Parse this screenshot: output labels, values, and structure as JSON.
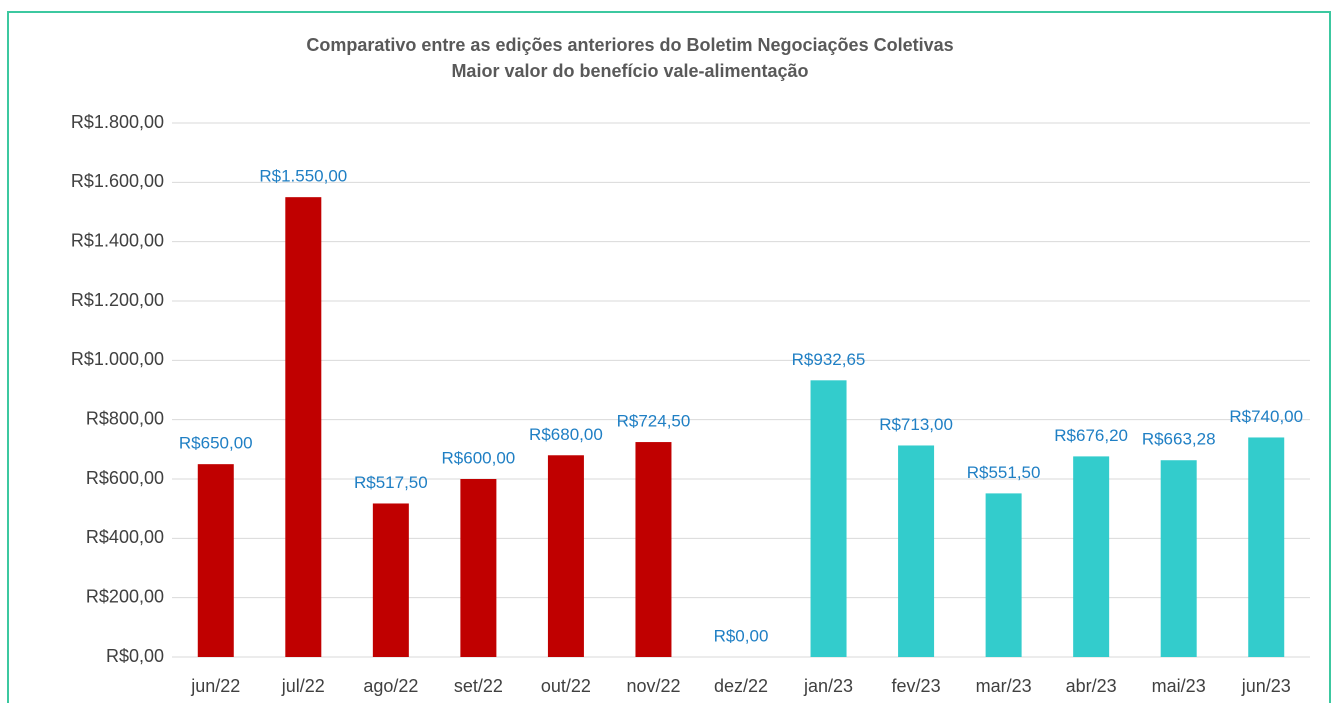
{
  "chart_data": {
    "type": "bar",
    "title": "Comparativo entre as edições anteriores do Boletim Negociações Coletivas",
    "subtitle": "Maior valor do benefício vale-alimentação",
    "categories": [
      "jun/22",
      "jul/22",
      "ago/22",
      "set/22",
      "out/22",
      "nov/22",
      "dez/22",
      "jan/23",
      "fev/23",
      "mar/23",
      "abr/23",
      "mai/23",
      "jun/23"
    ],
    "values": [
      650,
      1550,
      517.5,
      600,
      680,
      724.5,
      0,
      932.65,
      713,
      551.5,
      676.2,
      663.28,
      740
    ],
    "value_labels": [
      "R$650,00",
      "R$1.550,00",
      "R$517,50",
      "R$600,00",
      "R$680,00",
      "R$724,50",
      "R$0,00",
      "R$932,65",
      "R$713,00",
      "R$551,50",
      "R$676,20",
      "R$663,28",
      "R$740,00"
    ],
    "colors": [
      "#c00000",
      "#c00000",
      "#c00000",
      "#c00000",
      "#c00000",
      "#c00000",
      "#c00000",
      "#33cccc",
      "#33cccc",
      "#33cccc",
      "#33cccc",
      "#33cccc",
      "#33cccc"
    ],
    "ylim": [
      0,
      1800
    ],
    "yticks": [
      {
        "value": 0,
        "label": "R$0,00"
      },
      {
        "value": 200,
        "label": "R$200,00"
      },
      {
        "value": 400,
        "label": "R$400,00"
      },
      {
        "value": 600,
        "label": "R$600,00"
      },
      {
        "value": 800,
        "label": "R$800,00"
      },
      {
        "value": 1000,
        "label": "R$1.000,00"
      },
      {
        "value": 1200,
        "label": "R$1.200,00"
      },
      {
        "value": 1400,
        "label": "R$1.400,00"
      },
      {
        "value": 1600,
        "label": "R$1.600,00"
      },
      {
        "value": 1800,
        "label": "R$1.800,00"
      }
    ],
    "grid": true
  }
}
